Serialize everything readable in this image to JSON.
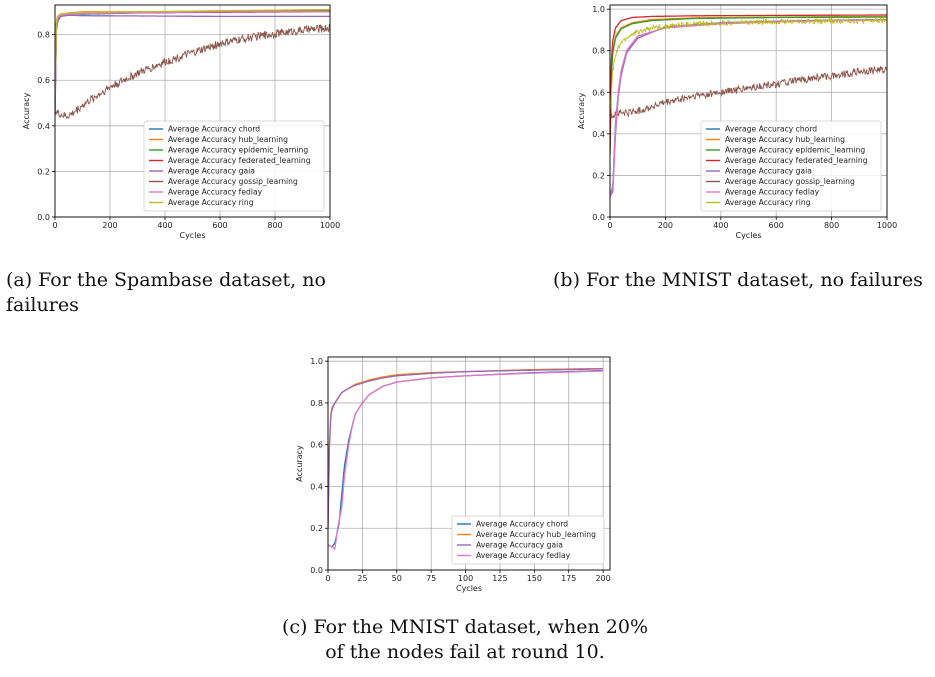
{
  "captions": [
    {
      "label": "(a)",
      "text": "For the Spambase dataset, no failures"
    },
    {
      "label": "(b)",
      "text": "For the MNIST dataset, no failures"
    },
    {
      "label": "(c)",
      "text": "For the MNIST dataset, when 20% of the nodes fail at round 10."
    }
  ],
  "colors": {
    "chord": "#1f77b4",
    "hub_learning": "#ff7f0e",
    "epidemic_learning": "#2ca02c",
    "federated_learning": "#d62728",
    "gaia": "#9467bd",
    "gossip_learning": "#8c564b",
    "fedlay": "#e377c2",
    "ring": "#bcbd22"
  },
  "chart_data": [
    {
      "type": "line",
      "xlabel": "Cycles",
      "ylabel": "Accuracy",
      "xlim": [
        0,
        1000
      ],
      "ylim": [
        0,
        0.93
      ],
      "xticks": [
        "0",
        "200",
        "400",
        "600",
        "800",
        "1000"
      ],
      "yticks": [
        "0.0",
        "0.2",
        "0.4",
        "0.6",
        "0.8"
      ],
      "legend_position": "lower-right",
      "grid": true,
      "series": [
        {
          "name": "Average Accuracy chord",
          "key": "chord",
          "x": [
            0,
            5,
            10,
            20,
            50,
            100,
            300,
            600,
            1000
          ],
          "y": [
            0.45,
            0.82,
            0.86,
            0.88,
            0.89,
            0.89,
            0.895,
            0.9,
            0.905
          ]
        },
        {
          "name": "Average Accuracy hub_learning",
          "key": "hub_learning",
          "x": [
            0,
            5,
            10,
            20,
            50,
            100,
            300,
            600,
            1000
          ],
          "y": [
            0.5,
            0.85,
            0.88,
            0.89,
            0.895,
            0.9,
            0.9,
            0.9,
            0.905
          ]
        },
        {
          "name": "Average Accuracy epidemic_learning",
          "key": "epidemic_learning",
          "x": [
            0,
            5,
            10,
            20,
            50,
            100,
            300,
            600,
            1000
          ],
          "y": [
            0.48,
            0.84,
            0.87,
            0.885,
            0.89,
            0.895,
            0.897,
            0.9,
            0.903
          ]
        },
        {
          "name": "Average Accuracy federated_learning",
          "key": "federated_learning",
          "x": [
            0,
            5,
            10,
            20,
            50,
            100,
            300,
            600,
            1000
          ],
          "y": [
            0.46,
            0.83,
            0.865,
            0.88,
            0.89,
            0.893,
            0.896,
            0.898,
            0.9
          ]
        },
        {
          "name": "Average Accuracy gaia",
          "key": "gaia",
          "x": [
            0,
            5,
            10,
            20,
            50,
            100,
            300,
            600,
            1000
          ],
          "y": [
            0.47,
            0.84,
            0.87,
            0.88,
            0.885,
            0.883,
            0.882,
            0.88,
            0.88
          ]
        },
        {
          "name": "Average Accuracy gossip_learning",
          "key": "gossip_learning",
          "x": [
            0,
            20,
            40,
            60,
            80,
            100,
            150,
            200,
            300,
            400,
            500,
            600,
            700,
            800,
            900,
            1000
          ],
          "y": [
            0.46,
            0.45,
            0.44,
            0.45,
            0.47,
            0.49,
            0.53,
            0.57,
            0.63,
            0.68,
            0.72,
            0.76,
            0.785,
            0.805,
            0.82,
            0.83
          ],
          "noisy": true
        },
        {
          "name": "Average Accuracy fedlay",
          "key": "fedlay",
          "x": [
            0,
            5,
            10,
            20,
            50,
            100,
            300,
            600,
            1000
          ],
          "y": [
            0.46,
            0.84,
            0.87,
            0.885,
            0.89,
            0.893,
            0.896,
            0.9,
            0.9
          ]
        },
        {
          "name": "Average Accuracy ring",
          "key": "ring",
          "x": [
            0,
            5,
            10,
            20,
            50,
            100,
            300,
            600,
            1000
          ],
          "y": [
            0.55,
            0.86,
            0.88,
            0.89,
            0.895,
            0.897,
            0.9,
            0.905,
            0.91
          ]
        }
      ]
    },
    {
      "type": "line",
      "xlabel": "Cycles",
      "ylabel": "Accuracy",
      "xlim": [
        0,
        1000
      ],
      "ylim": [
        0,
        1.02
      ],
      "xticks": [
        "0",
        "200",
        "400",
        "600",
        "800",
        "1000"
      ],
      "yticks": [
        "0.0",
        "0.2",
        "0.4",
        "0.6",
        "0.8",
        "1.0"
      ],
      "legend_position": "lower-right",
      "grid": true,
      "series": [
        {
          "name": "Average Accuracy chord",
          "key": "chord",
          "x": [
            0,
            10,
            20,
            30,
            40,
            60,
            100,
            200,
            400,
            700,
            1000
          ],
          "y": [
            0.1,
            0.15,
            0.45,
            0.6,
            0.7,
            0.8,
            0.87,
            0.91,
            0.93,
            0.945,
            0.95
          ]
        },
        {
          "name": "Average Accuracy hub_learning",
          "key": "hub_learning",
          "x": [
            0,
            5,
            10,
            20,
            40,
            80,
            150,
            300,
            600,
            1000
          ],
          "y": [
            0.3,
            0.7,
            0.8,
            0.87,
            0.91,
            0.935,
            0.95,
            0.958,
            0.962,
            0.965
          ]
        },
        {
          "name": "Average Accuracy epidemic_learning",
          "key": "epidemic_learning",
          "x": [
            0,
            5,
            10,
            20,
            40,
            80,
            150,
            300,
            600,
            1000
          ],
          "y": [
            0.3,
            0.68,
            0.79,
            0.86,
            0.905,
            0.93,
            0.945,
            0.955,
            0.96,
            0.962
          ]
        },
        {
          "name": "Average Accuracy federated_learning",
          "key": "federated_learning",
          "x": [
            0,
            5,
            10,
            20,
            40,
            80,
            150,
            300,
            600,
            1000
          ],
          "y": [
            0.35,
            0.75,
            0.85,
            0.91,
            0.945,
            0.96,
            0.965,
            0.968,
            0.97,
            0.972
          ]
        },
        {
          "name": "Average Accuracy gaia",
          "key": "gaia",
          "x": [
            0,
            10,
            20,
            30,
            40,
            60,
            100,
            200,
            400,
            700,
            1000
          ],
          "y": [
            0.1,
            0.12,
            0.4,
            0.58,
            0.68,
            0.79,
            0.86,
            0.915,
            0.935,
            0.945,
            0.95
          ]
        },
        {
          "name": "Average Accuracy gossip_learning",
          "key": "gossip_learning",
          "x": [
            0,
            20,
            50,
            100,
            150,
            200,
            300,
            400,
            500,
            600,
            700,
            800,
            900,
            1000
          ],
          "y": [
            0.48,
            0.5,
            0.5,
            0.51,
            0.53,
            0.55,
            0.58,
            0.6,
            0.62,
            0.64,
            0.66,
            0.68,
            0.7,
            0.71
          ],
          "noisy": true
        },
        {
          "name": "Average Accuracy fedlay",
          "key": "fedlay",
          "x": [
            0,
            10,
            20,
            30,
            40,
            60,
            100,
            200,
            400,
            700,
            1000
          ],
          "y": [
            0.1,
            0.14,
            0.43,
            0.6,
            0.7,
            0.8,
            0.87,
            0.91,
            0.93,
            0.942,
            0.948
          ]
        },
        {
          "name": "Average Accuracy ring",
          "key": "ring",
          "x": [
            0,
            5,
            10,
            20,
            40,
            80,
            150,
            300,
            600,
            1000
          ],
          "y": [
            0.5,
            0.6,
            0.7,
            0.78,
            0.84,
            0.88,
            0.91,
            0.93,
            0.94,
            0.945
          ],
          "noisy": true
        }
      ]
    },
    {
      "type": "line",
      "xlabel": "Cycles",
      "ylabel": "Accuracy",
      "xlim": [
        0,
        205
      ],
      "ylim": [
        0,
        1.02
      ],
      "xticks": [
        "0",
        "25",
        "50",
        "75",
        "100",
        "125",
        "150",
        "175",
        "200"
      ],
      "yticks": [
        "0.0",
        "0.2",
        "0.4",
        "0.6",
        "0.8",
        "1.0"
      ],
      "legend_position": "lower-right",
      "grid": true,
      "series": [
        {
          "name": "Average Accuracy chord",
          "key": "chord",
          "x": [
            0,
            3,
            5,
            8,
            10,
            12,
            15,
            18,
            20,
            25,
            30,
            40,
            50,
            75,
            100,
            150,
            200
          ],
          "y": [
            0.12,
            0.11,
            0.13,
            0.22,
            0.36,
            0.5,
            0.62,
            0.7,
            0.75,
            0.8,
            0.84,
            0.88,
            0.9,
            0.92,
            0.93,
            0.945,
            0.955
          ]
        },
        {
          "name": "Average Accuracy hub_learning",
          "key": "hub_learning",
          "x": [
            0,
            1,
            2,
            3,
            5,
            8,
            10,
            15,
            20,
            30,
            40,
            50,
            75,
            100,
            150,
            200
          ],
          "y": [
            0.2,
            0.6,
            0.74,
            0.78,
            0.8,
            0.83,
            0.85,
            0.87,
            0.89,
            0.91,
            0.925,
            0.935,
            0.945,
            0.95,
            0.96,
            0.965
          ]
        },
        {
          "name": "Average Accuracy gaia",
          "key": "gaia",
          "x": [
            0,
            1,
            2,
            3,
            5,
            8,
            10,
            15,
            20,
            30,
            40,
            50,
            75,
            100,
            150,
            200
          ],
          "y": [
            0.2,
            0.58,
            0.73,
            0.77,
            0.8,
            0.83,
            0.85,
            0.87,
            0.885,
            0.905,
            0.92,
            0.93,
            0.942,
            0.95,
            0.957,
            0.963
          ]
        },
        {
          "name": "Average Accuracy fedlay",
          "key": "fedlay",
          "x": [
            0,
            3,
            5,
            7,
            10,
            12,
            15,
            18,
            20,
            25,
            30,
            40,
            50,
            75,
            100,
            150,
            200
          ],
          "y": [
            0.12,
            0.11,
            0.1,
            0.2,
            0.3,
            0.45,
            0.6,
            0.7,
            0.75,
            0.8,
            0.84,
            0.88,
            0.9,
            0.92,
            0.93,
            0.943,
            0.953
          ]
        }
      ]
    }
  ]
}
